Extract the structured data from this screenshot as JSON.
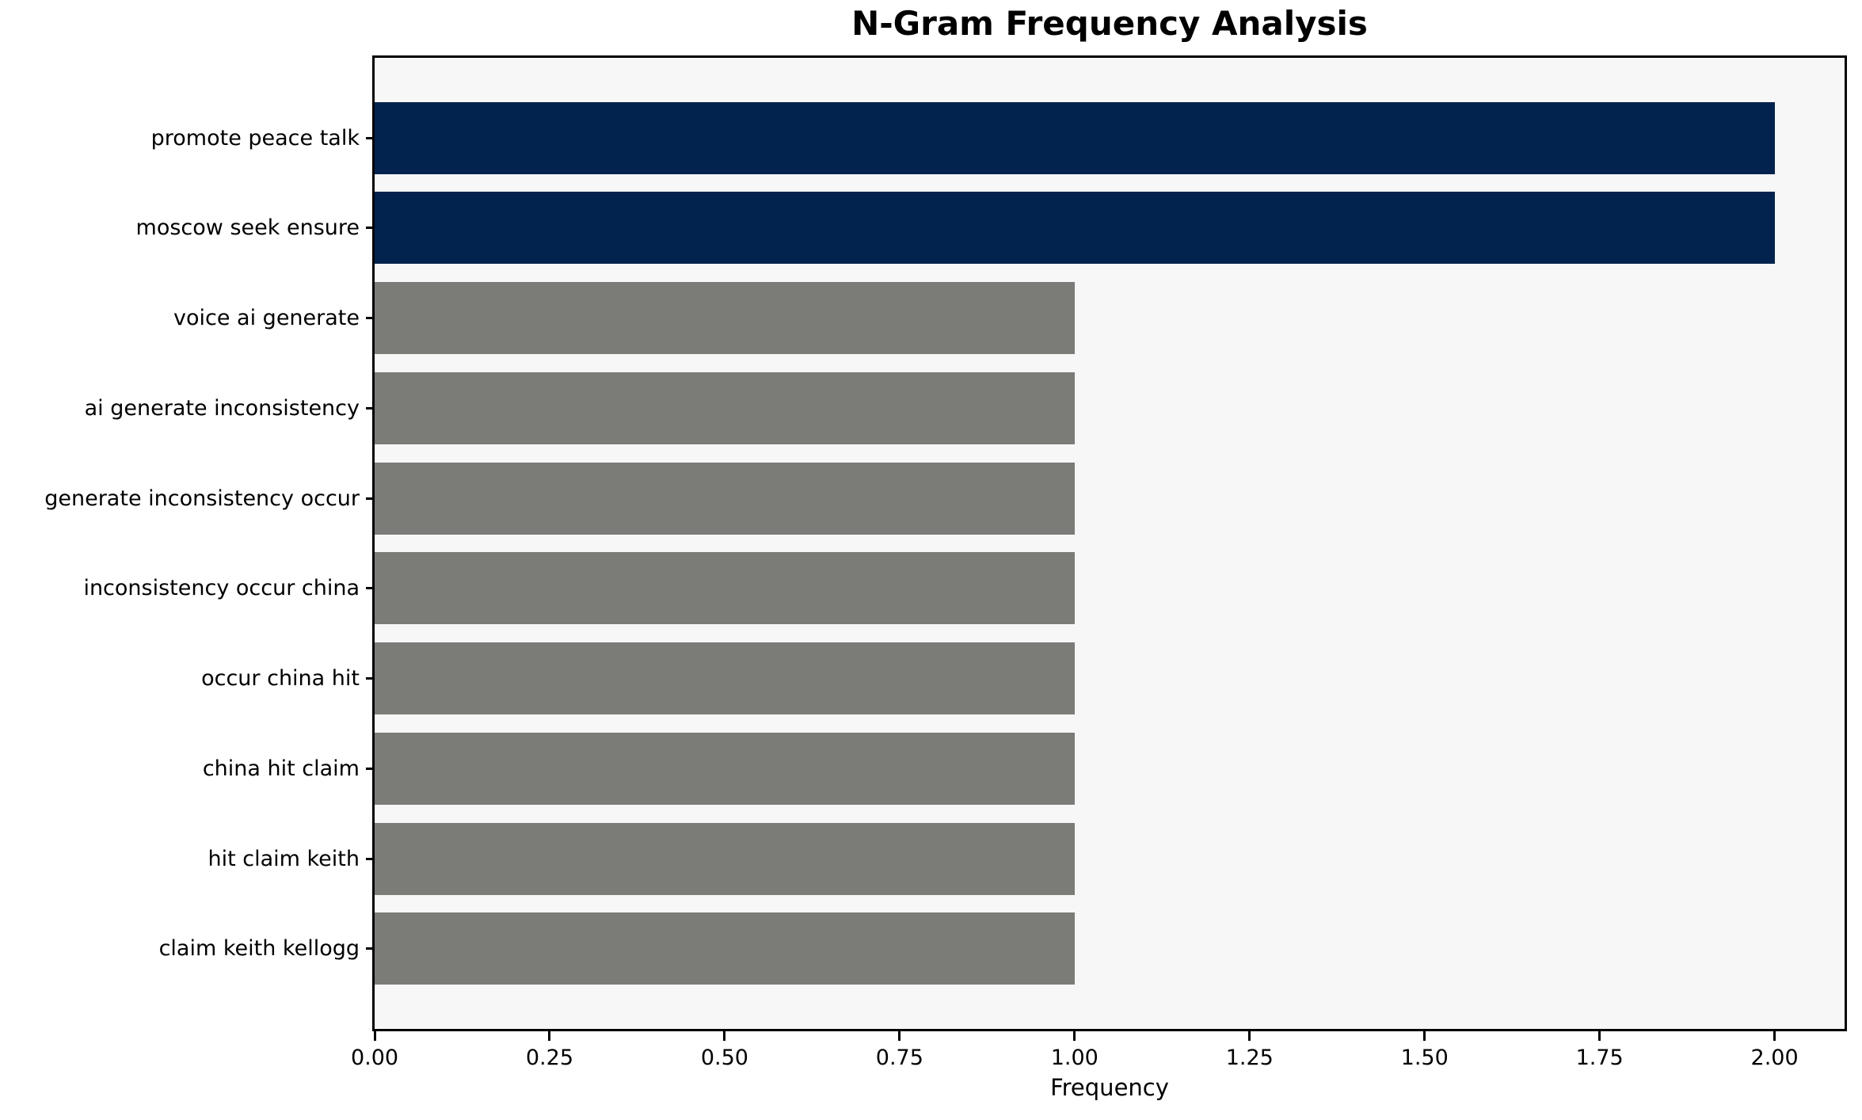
{
  "chart_data": {
    "type": "bar",
    "orientation": "horizontal",
    "title": "N-Gram Frequency Analysis",
    "xlabel": "Frequency",
    "ylabel": "",
    "categories": [
      "promote peace talk",
      "moscow seek ensure",
      "voice ai generate",
      "ai generate inconsistency",
      "generate inconsistency occur",
      "inconsistency occur china",
      "occur china hit",
      "china hit claim",
      "hit claim keith",
      "claim keith kellogg"
    ],
    "values": [
      2,
      2,
      1,
      1,
      1,
      1,
      1,
      1,
      1,
      1
    ],
    "bar_colors": [
      "#02234e",
      "#02234e",
      "#7b7b78",
      "#7b7b78",
      "#7b7b78",
      "#7b7b78",
      "#7b7b78",
      "#7b7b78",
      "#7b7b78",
      "#7b7b78"
    ],
    "x_tick_labels": [
      "0.00",
      "0.25",
      "0.50",
      "0.75",
      "1.00",
      "1.25",
      "1.50",
      "1.75",
      "2.00"
    ],
    "xlim": [
      0,
      2.1
    ],
    "grid": "off",
    "legend": "none",
    "colors": {
      "bar_highlight": "#02234e",
      "bar_default": "#7b7b78",
      "plot_background": "#f7f7f7",
      "figure_background": "#ffffff",
      "axis": "#000000",
      "text": "#000000"
    }
  }
}
